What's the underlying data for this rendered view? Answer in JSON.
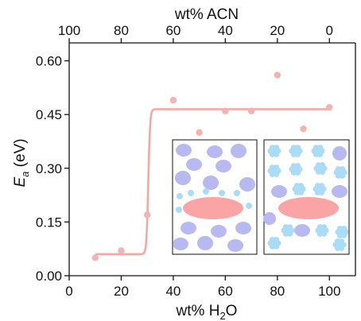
{
  "chart_data": {
    "type": "scatter",
    "title": "",
    "xlabel": {
      "prefix": "wt% H",
      "sub": "2",
      "suffix": "O"
    },
    "x2label": "wt% ACN",
    "ylabel": {
      "main": "E",
      "sub": "a",
      "unit": " (eV)"
    },
    "xlim": [
      0,
      110
    ],
    "ylim": [
      0,
      0.65
    ],
    "x_ticks": [
      0,
      20,
      40,
      60,
      80,
      100
    ],
    "x_tick_labels": [
      "0",
      "20",
      "40",
      "60",
      "80",
      "100"
    ],
    "x2_ticks": [
      0,
      20,
      40,
      60,
      80,
      100
    ],
    "x2_tick_labels": [
      "100",
      "80",
      "60",
      "40",
      "20",
      "0"
    ],
    "y_ticks": [
      0.0,
      0.15,
      0.3,
      0.45,
      0.6
    ],
    "y_tick_labels": [
      "0.00",
      "0.15",
      "0.30",
      "0.45",
      "0.60"
    ],
    "grid": false,
    "legend": "none",
    "colors": {
      "points": "#f3b4b1",
      "fit": "#f4a8a6",
      "axis": "#111111"
    },
    "points": [
      {
        "x": 10,
        "y": 0.05
      },
      {
        "x": 20,
        "y": 0.07
      },
      {
        "x": 30,
        "y": 0.17
      },
      {
        "x": 40,
        "y": 0.49
      },
      {
        "x": 50,
        "y": 0.4
      },
      {
        "x": 60,
        "y": 0.46
      },
      {
        "x": 70,
        "y": 0.46
      },
      {
        "x": 80,
        "y": 0.56
      },
      {
        "x": 90,
        "y": 0.41
      },
      {
        "x": 100,
        "y": 0.47
      }
    ],
    "fit_curve": {
      "type": "sigmoid",
      "low": 0.06,
      "high": 0.465,
      "center": 30.4,
      "width": 0.35,
      "x_range": [
        10,
        100
      ]
    }
  },
  "inset": {
    "colors": {
      "blob": "#b8b9f1",
      "highlight": "#fba4a5",
      "small_dot": "#a8dcf8",
      "flower": "#aadcf8"
    }
  }
}
